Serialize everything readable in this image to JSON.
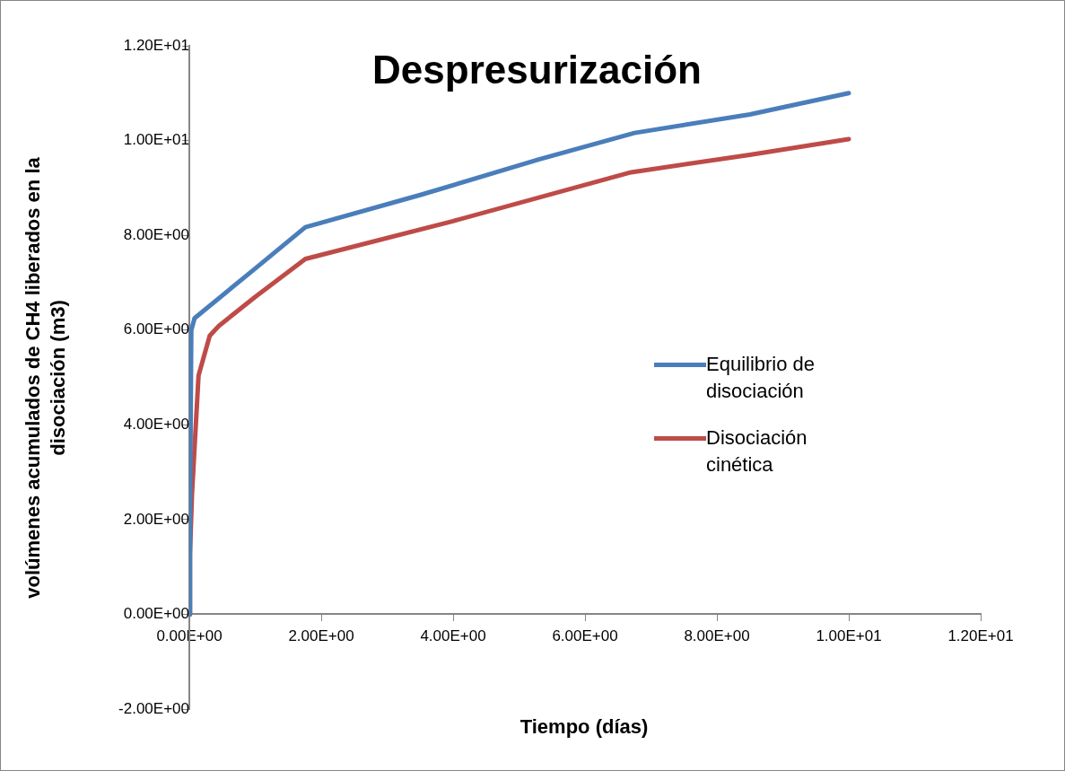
{
  "chart_data": {
    "type": "line",
    "title": "Despresurización",
    "xlabel": "Tiempo (días)",
    "ylabel": "volúmenes acumulados de CH4 liberados en la disociación (m3)",
    "series": [
      {
        "name": "Equilibrio de disociación",
        "color": "#4a7ebb",
        "x": [
          0,
          0.01,
          0.02,
          0.03,
          0.08,
          1.0,
          1.76,
          3.5,
          5.3,
          6.75,
          8.5,
          10
        ],
        "values": [
          0,
          2.0,
          4.0,
          6.0,
          6.25,
          7.3,
          8.17,
          8.85,
          9.6,
          10.16,
          10.55,
          11.0
        ]
      },
      {
        "name": "Disociación cinética",
        "color": "#be4b48",
        "x": [
          0,
          0.01,
          0.04,
          0.14,
          0.31,
          0.45,
          1.0,
          1.76,
          4.0,
          6.7,
          8.5,
          10
        ],
        "values": [
          0,
          1.25,
          2.52,
          5.04,
          5.88,
          6.09,
          6.7,
          7.5,
          8.3,
          9.33,
          9.7,
          10.03
        ]
      }
    ],
    "xlim": [
      0,
      12
    ],
    "ylim": [
      -2,
      12
    ],
    "xticks": [
      {
        "value": 0,
        "label": "0.00E+00"
      },
      {
        "value": 2,
        "label": "2.00E+00"
      },
      {
        "value": 4,
        "label": "4.00E+00"
      },
      {
        "value": 6,
        "label": "6.00E+00"
      },
      {
        "value": 8,
        "label": "8.00E+00"
      },
      {
        "value": 10,
        "label": "1.00E+01"
      },
      {
        "value": 12,
        "label": "1.20E+01"
      }
    ],
    "yticks": [
      {
        "value": -2,
        "label": "-2.00E+00"
      },
      {
        "value": 0,
        "label": "0.00E+00"
      },
      {
        "value": 2,
        "label": "2.00E+00"
      },
      {
        "value": 4,
        "label": "4.00E+00"
      },
      {
        "value": 6,
        "label": "6.00E+00"
      },
      {
        "value": 8,
        "label": "8.00E+00"
      },
      {
        "value": 10,
        "label": "1.00E+01"
      },
      {
        "value": 12,
        "label": "1.20E+01"
      }
    ],
    "grid": false,
    "legend": "right",
    "marker": "none",
    "line_style": "solid"
  }
}
